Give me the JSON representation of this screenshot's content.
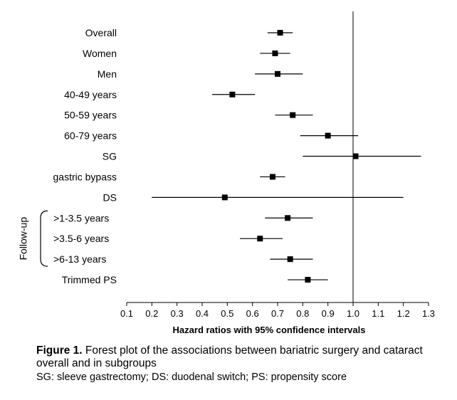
{
  "chart_data": {
    "type": "forest",
    "xlabel": "Hazard ratios with 95% confidence intervals",
    "xlim": [
      0.1,
      1.3
    ],
    "xticks": [
      "0.1",
      "0.2",
      "0.3",
      "0.4",
      "0.5",
      "0.6",
      "0.7",
      "0.8",
      "0.9",
      "1.0",
      "1.1",
      "1.2",
      "1.3"
    ],
    "reference_line": 1.0,
    "group_label": "Follow-up",
    "rows": [
      {
        "label": "Overall",
        "hr": 0.71,
        "lo": 0.66,
        "hi": 0.76
      },
      {
        "label": "Women",
        "hr": 0.69,
        "lo": 0.63,
        "hi": 0.75
      },
      {
        "label": "Men",
        "hr": 0.7,
        "lo": 0.61,
        "hi": 0.8
      },
      {
        "label": "40-49 years",
        "hr": 0.52,
        "lo": 0.44,
        "hi": 0.61
      },
      {
        "label": "50-59 years",
        "hr": 0.76,
        "lo": 0.69,
        "hi": 0.84
      },
      {
        "label": "60-79 years",
        "hr": 0.9,
        "lo": 0.79,
        "hi": 1.02
      },
      {
        "label": "SG",
        "hr": 1.01,
        "lo": 0.8,
        "hi": 1.27
      },
      {
        "label": "gastric bypass",
        "hr": 0.68,
        "lo": 0.63,
        "hi": 0.73
      },
      {
        "label": "DS",
        "hr": 0.49,
        "lo": 0.2,
        "hi": 1.2
      },
      {
        "label": ">1-3.5 years",
        "hr": 0.74,
        "lo": 0.65,
        "hi": 0.84
      },
      {
        "label": ">3.5-6 years",
        "hr": 0.63,
        "lo": 0.55,
        "hi": 0.72
      },
      {
        "label": ">6-13 years",
        "hr": 0.75,
        "lo": 0.67,
        "hi": 0.84
      },
      {
        "label": "Trimmed PS",
        "hr": 0.82,
        "lo": 0.74,
        "hi": 0.9
      }
    ]
  },
  "caption": {
    "figure_label": "Figure 1.",
    "title_text": " Forest plot of the associations between bariatric surgery and cataract overall and in subgroups",
    "note": "SG: sleeve gastrectomy; DS: duodenal switch; PS: propensity score"
  }
}
